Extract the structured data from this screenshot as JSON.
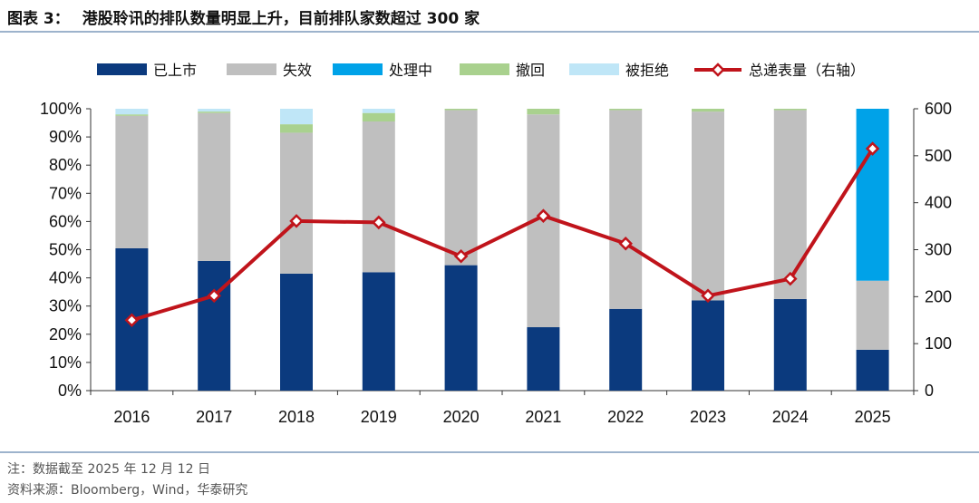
{
  "header": {
    "label": "图表 3：",
    "title": "港股聆讯的排队数量明显上升，目前排队家数超过 300 家"
  },
  "footer": {
    "note": "注：数据截至 2025 年 12 月 12 日",
    "source": "资料来源：Bloomberg，Wind，华泰研究"
  },
  "chart_data": {
    "type": "bar",
    "stacked": true,
    "categories": [
      "2016",
      "2017",
      "2018",
      "2019",
      "2020",
      "2021",
      "2022",
      "2023",
      "2024",
      "2025"
    ],
    "series": [
      {
        "name": "已上市",
        "axis": "left",
        "color": "#0b3a7e",
        "values": [
          50.5,
          46,
          41.5,
          42,
          44.5,
          22.5,
          29,
          32,
          32.5,
          14.5
        ]
      },
      {
        "name": "失效",
        "axis": "left",
        "color": "#bfbfbf",
        "values": [
          47,
          52.5,
          50,
          53.5,
          55,
          75.5,
          70.5,
          67,
          67,
          24.5
        ]
      },
      {
        "name": "处理中",
        "axis": "left",
        "color": "#00a2e8",
        "values": [
          0,
          0,
          0,
          0,
          0,
          0,
          0,
          0,
          0,
          61
        ]
      },
      {
        "name": "撤回",
        "axis": "left",
        "color": "#a9d18e",
        "values": [
          0.5,
          0.5,
          3,
          3,
          0.5,
          2,
          0.5,
          1,
          0.5,
          0
        ]
      },
      {
        "name": "被拒绝",
        "axis": "left",
        "color": "#bfe6f7",
        "values": [
          2,
          1,
          5.5,
          1.5,
          0,
          0,
          0,
          0,
          0,
          0
        ]
      },
      {
        "name": "总递表量（右轴）",
        "axis": "right",
        "type": "line",
        "color": "#c0141b",
        "values": [
          150,
          202,
          361,
          358,
          286,
          372,
          313,
          202,
          238,
          515
        ]
      }
    ],
    "y_left": {
      "min": 0,
      "max": 100,
      "step": 10,
      "ticks": [
        "0%",
        "10%",
        "20%",
        "30%",
        "40%",
        "50%",
        "60%",
        "70%",
        "80%",
        "90%",
        "100%"
      ]
    },
    "y_right": {
      "min": 0,
      "max": 600,
      "step": 100,
      "ticks": [
        "0",
        "100",
        "200",
        "300",
        "400",
        "500",
        "600"
      ]
    },
    "legend": "top",
    "grid": false
  }
}
